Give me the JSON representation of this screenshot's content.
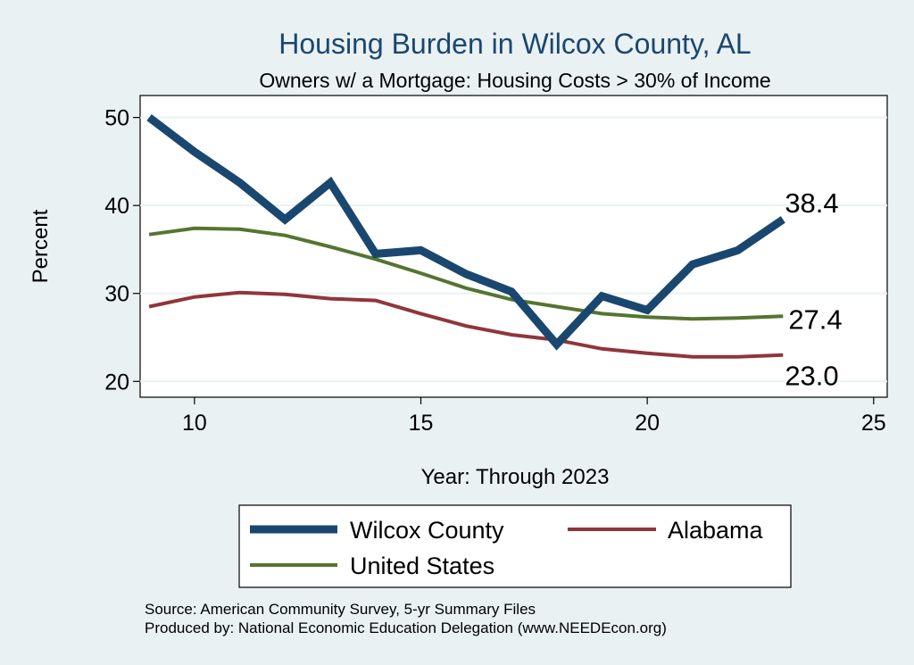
{
  "chart_data": {
    "type": "line",
    "title": "Housing Burden in Wilcox County, AL",
    "subtitle": "Owners w/ a Mortgage: Housing Costs > 30% of Income",
    "xlabel": "Year: Through 2023",
    "ylabel": "Percent",
    "xlim": [
      8.8,
      25.3
    ],
    "ylim": [
      18.2,
      52.5
    ],
    "xticks": [
      10,
      15,
      20,
      25
    ],
    "yticks": [
      20,
      30,
      40,
      50
    ],
    "grid": true,
    "legend_position": "bottom",
    "x": [
      9,
      10,
      11,
      12,
      13,
      14,
      15,
      16,
      17,
      18,
      19,
      20,
      21,
      22,
      23
    ],
    "series": [
      {
        "name": "Wilcox County",
        "color": "#1a476f",
        "end_label": "38.4",
        "values": [
          50.0,
          46.1,
          42.6,
          38.4,
          42.6,
          34.5,
          34.9,
          32.2,
          30.2,
          24.2,
          29.7,
          28.1,
          33.3,
          34.9,
          38.4
        ]
      },
      {
        "name": "Alabama",
        "color": "#90353b",
        "end_label": "23.0",
        "values": [
          28.5,
          29.6,
          30.1,
          29.9,
          29.4,
          29.2,
          27.7,
          26.3,
          25.3,
          24.7,
          23.7,
          23.2,
          22.8,
          22.8,
          23.0
        ]
      },
      {
        "name": "United States",
        "color": "#55752f",
        "end_label": "27.4",
        "values": [
          36.7,
          37.4,
          37.3,
          36.6,
          35.3,
          33.9,
          32.3,
          30.6,
          29.3,
          28.5,
          27.7,
          27.3,
          27.1,
          27.2,
          27.4
        ]
      }
    ],
    "legend": [
      "Wilcox County",
      "Alabama",
      "United States"
    ]
  },
  "source": {
    "line1": "Source: American Community Survey, 5-yr Summary Files",
    "line2": "Produced by: National Economic Education Delegation (www.NEEDEcon.org)"
  },
  "colors": {
    "background": "#eaf1f3",
    "plot_background": "#ffffff",
    "grid": "#eaf2f3",
    "title": "#1a476f"
  }
}
